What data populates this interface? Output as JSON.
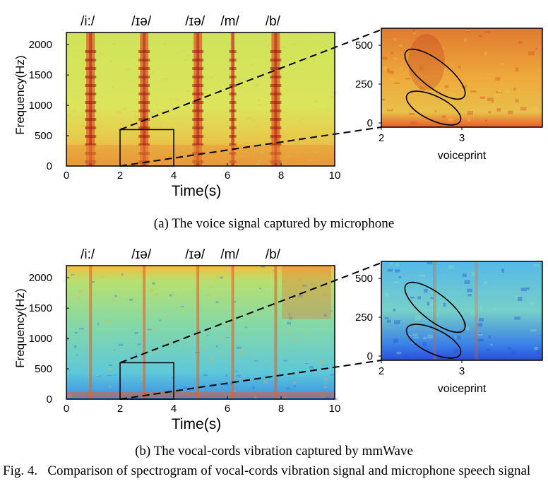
{
  "figure": {
    "panels": [
      {
        "id": "a",
        "caption": "(a)  The voice signal captured by microphone",
        "phonemes": [
          "/i:/",
          "/ɪə/",
          "/ɪə/",
          "/m/",
          "/b/"
        ],
        "phoneme_times": [
          0.9,
          2.9,
          4.9,
          6.2,
          7.8
        ],
        "ylabel": "Frequency(Hz)",
        "xlabel": "Time(s)",
        "y_ticks": [
          "0",
          "500",
          "1000",
          "1500",
          "2000"
        ],
        "x_ticks": [
          "0",
          "2",
          "4",
          "6",
          "8",
          "10"
        ],
        "zoom_y_ticks": [
          "0",
          "250",
          "500"
        ],
        "zoom_x_ticks": [
          "2",
          "3"
        ],
        "zoom_label": "voiceprint",
        "colormap": "jet",
        "palette": {
          "background": "#d8e85a",
          "energy": "#c8281a"
        }
      },
      {
        "id": "b",
        "caption": "(b)  The vocal-cords vibration captured by mmWave",
        "phonemes": [
          "/i:/",
          "/ɪə/",
          "/ɪə/",
          "/m/",
          "/b/"
        ],
        "phoneme_times": [
          0.9,
          2.9,
          4.9,
          6.2,
          7.8
        ],
        "ylabel": "Frequency(Hz)",
        "xlabel": "Time(s)",
        "y_ticks": [
          "0",
          "500",
          "1000",
          "1500",
          "2000"
        ],
        "x_ticks": [
          "0",
          "2",
          "4",
          "6",
          "8",
          "10"
        ],
        "zoom_y_ticks": [
          "0",
          "250",
          "500"
        ],
        "zoom_x_ticks": [
          "2",
          "3"
        ],
        "zoom_label": "voiceprint",
        "colormap": "jet",
        "palette": {
          "background": "#7fd8b0",
          "energy": "#d8502a",
          "low": "#2a5ae0"
        }
      }
    ],
    "caption_label": "Fig. 4.",
    "caption_text": "Comparison of spectrogram of vocal-cords vibration signal and microphone speech signal"
  }
}
